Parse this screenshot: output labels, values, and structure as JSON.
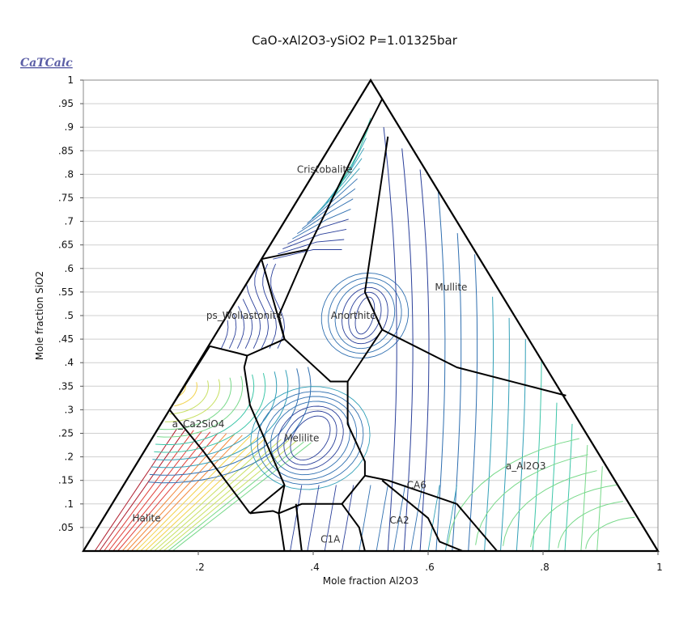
{
  "chart_data": {
    "type": "ternary-phase-diagram",
    "title": "CaO-xAl2O3-ySiO2 P=1.01325bar",
    "logo": "CaTCalc",
    "xlabel": "Mole fraction Al2O3",
    "ylabel": "Mole fraction SiO2",
    "xlim": [
      0,
      1
    ],
    "ylim": [
      0,
      1
    ],
    "x_ticks": [
      ".2",
      ".4",
      ".6",
      ".8",
      "1"
    ],
    "y_ticks": [
      ".05",
      ".1",
      ".15",
      ".2",
      ".25",
      ".3",
      ".35",
      ".4",
      ".45",
      ".5",
      ".55",
      ".6",
      ".65",
      ".7",
      ".75",
      ".8",
      ".85",
      ".9",
      ".95",
      "1"
    ],
    "grid": "horizontal",
    "phase_fields": [
      {
        "name": "Cristobalite",
        "x": 0.42,
        "y": 0.81
      },
      {
        "name": "ps_Wollastonite",
        "x": 0.28,
        "y": 0.5
      },
      {
        "name": "Anorthite",
        "x": 0.47,
        "y": 0.5
      },
      {
        "name": "Mullite",
        "x": 0.64,
        "y": 0.56
      },
      {
        "name": "a_Ca2SiO4",
        "x": 0.2,
        "y": 0.27
      },
      {
        "name": "Melilite",
        "x": 0.38,
        "y": 0.24
      },
      {
        "name": "Halite",
        "x": 0.11,
        "y": 0.07
      },
      {
        "name": "a_Al2O3",
        "x": 0.77,
        "y": 0.18
      },
      {
        "name": "CA6",
        "x": 0.58,
        "y": 0.14
      },
      {
        "name": "CA2",
        "x": 0.55,
        "y": 0.065
      },
      {
        "name": "C1A",
        "x": 0.43,
        "y": 0.025
      }
    ],
    "boundaries": [
      [
        [
          0.31,
          0.62
        ],
        [
          0.35,
          0.63
        ],
        [
          0.39,
          0.64
        ]
      ],
      [
        [
          0.39,
          0.64
        ],
        [
          0.47,
          0.84
        ],
        [
          0.52,
          0.96
        ]
      ],
      [
        [
          0.39,
          0.64
        ],
        [
          0.34,
          0.5
        ],
        [
          0.35,
          0.45
        ]
      ],
      [
        [
          0.31,
          0.62
        ],
        [
          0.35,
          0.45
        ]
      ],
      [
        [
          0.22,
          0.435
        ],
        [
          0.27,
          0.42
        ],
        [
          0.285,
          0.415
        ]
      ],
      [
        [
          0.35,
          0.45
        ],
        [
          0.285,
          0.415
        ]
      ],
      [
        [
          0.285,
          0.415
        ],
        [
          0.28,
          0.39
        ]
      ],
      [
        [
          0.35,
          0.45
        ],
        [
          0.43,
          0.36
        ],
        [
          0.46,
          0.36
        ]
      ],
      [
        [
          0.46,
          0.36
        ],
        [
          0.52,
          0.47
        ],
        [
          0.49,
          0.55
        ],
        [
          0.53,
          0.88
        ]
      ],
      [
        [
          0.52,
          0.47
        ],
        [
          0.65,
          0.39
        ],
        [
          0.84,
          0.33
        ]
      ],
      [
        [
          0.22,
          0.435
        ],
        [
          0.15,
          0.3
        ]
      ],
      [
        [
          0.15,
          0.3
        ],
        [
          0.21,
          0.21
        ],
        [
          0.29,
          0.08
        ]
      ],
      [
        [
          0.28,
          0.39
        ],
        [
          0.29,
          0.31
        ],
        [
          0.35,
          0.14
        ],
        [
          0.29,
          0.08
        ]
      ],
      [
        [
          0.29,
          0.08
        ],
        [
          0.33,
          0.085
        ],
        [
          0.34,
          0.08
        ]
      ],
      [
        [
          0.34,
          0.08
        ],
        [
          0.35,
          0.14
        ]
      ],
      [
        [
          0.46,
          0.36
        ],
        [
          0.46,
          0.27
        ],
        [
          0.49,
          0.19
        ],
        [
          0.49,
          0.16
        ],
        [
          0.45,
          0.1
        ]
      ],
      [
        [
          0.49,
          0.16
        ],
        [
          0.53,
          0.15
        ],
        [
          0.65,
          0.1
        ],
        [
          0.72,
          0
        ]
      ],
      [
        [
          0.34,
          0.08
        ],
        [
          0.38,
          0.1
        ],
        [
          0.45,
          0.1
        ]
      ],
      [
        [
          0.45,
          0.1
        ],
        [
          0.48,
          0.05
        ],
        [
          0.49,
          0
        ]
      ],
      [
        [
          0.34,
          0.08
        ],
        [
          0.35,
          0
        ]
      ],
      [
        [
          0.37,
          0.1
        ],
        [
          0.38,
          0
        ]
      ],
      [
        [
          0.52,
          0.15
        ],
        [
          0.6,
          0.07
        ],
        [
          0.62,
          0.02
        ],
        [
          0.66,
          0
        ]
      ]
    ],
    "contour_colormap": [
      "#1b1464",
      "#2a3f9a",
      "#2f6fb0",
      "#32a0b8",
      "#3cc6a8",
      "#78d98a",
      "#c8e062",
      "#f2d24a",
      "#f28a3c",
      "#e0403a",
      "#b01e2e"
    ]
  }
}
